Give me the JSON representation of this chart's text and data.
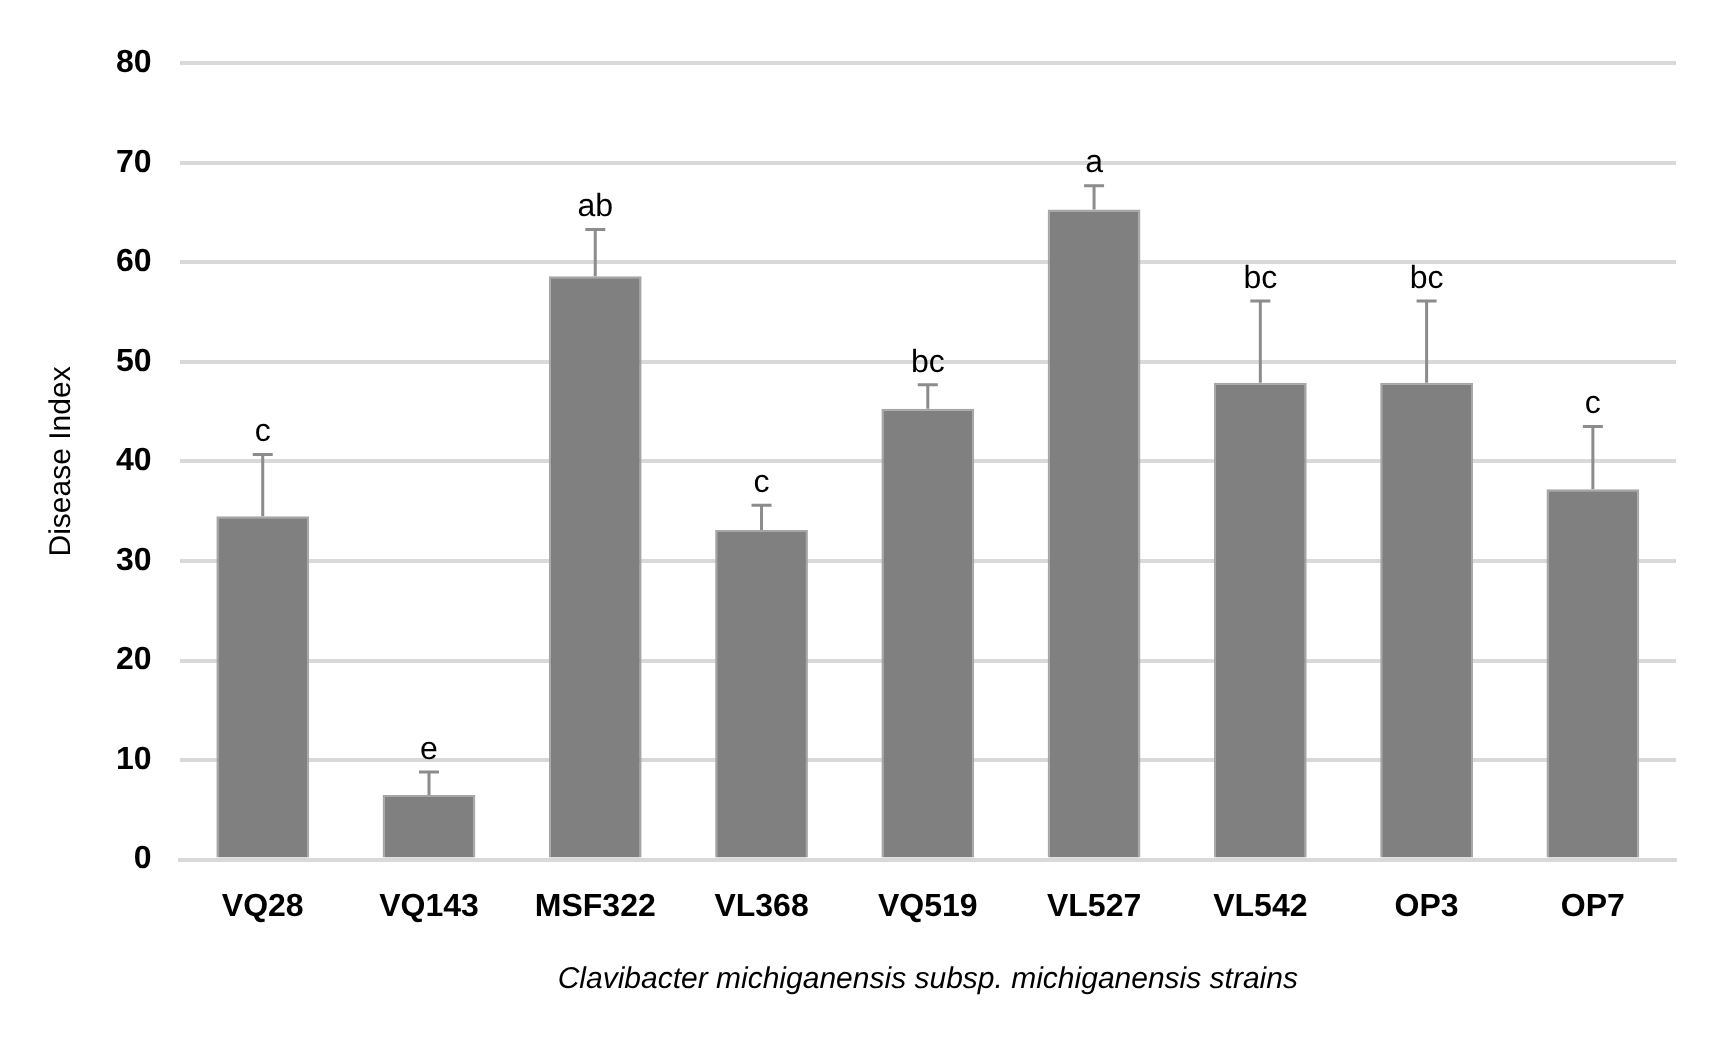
{
  "chart_data": {
    "type": "bar",
    "xlabel": "Clavibacter michiganensis subsp. michiganensis strains",
    "ylabel": "Disease Index",
    "categories": [
      "VQ28",
      "VQ143",
      "MSF322",
      "VL368",
      "VQ519",
      "VL527",
      "VL542",
      "OP3",
      "OP7"
    ],
    "values": [
      34.5,
      6.5,
      58.6,
      33.1,
      45.3,
      65.3,
      47.9,
      47.9,
      37.2
    ],
    "errors": [
      [
        34.5,
        40.7
      ],
      [
        6.5,
        8.8
      ],
      [
        58.6,
        63.3
      ],
      [
        33.1,
        35.6
      ],
      [
        45.3,
        47.7
      ],
      [
        65.3,
        67.7
      ],
      [
        47.9,
        56.1
      ],
      [
        47.9,
        56.1
      ],
      [
        37.2,
        43.5
      ]
    ],
    "color": "#808080",
    "ylim": [
      0,
      80
    ],
    "yticks": [
      0,
      10,
      20,
      30,
      40,
      50,
      60,
      70,
      80
    ],
    "grid": "y",
    "annotations": [
      {
        "text": "c",
        "x": "VQ28",
        "y": 34.5
      },
      {
        "text": "e",
        "x": "VQ143",
        "y": 6.5
      },
      {
        "text": "ab",
        "x": "MSF322",
        "y": 58.6
      },
      {
        "text": "c",
        "x": "VL368",
        "y": 33.1
      },
      {
        "text": "bc",
        "x": "VQ519",
        "y": 45.3
      },
      {
        "text": "a",
        "x": "VL527",
        "y": 65.3
      },
      {
        "text": "bc",
        "x": "VL542",
        "y": 47.9
      },
      {
        "text": "bc",
        "x": "OP3",
        "y": 47.9
      },
      {
        "text": "c",
        "x": "OP7",
        "y": 37.2
      }
    ]
  }
}
